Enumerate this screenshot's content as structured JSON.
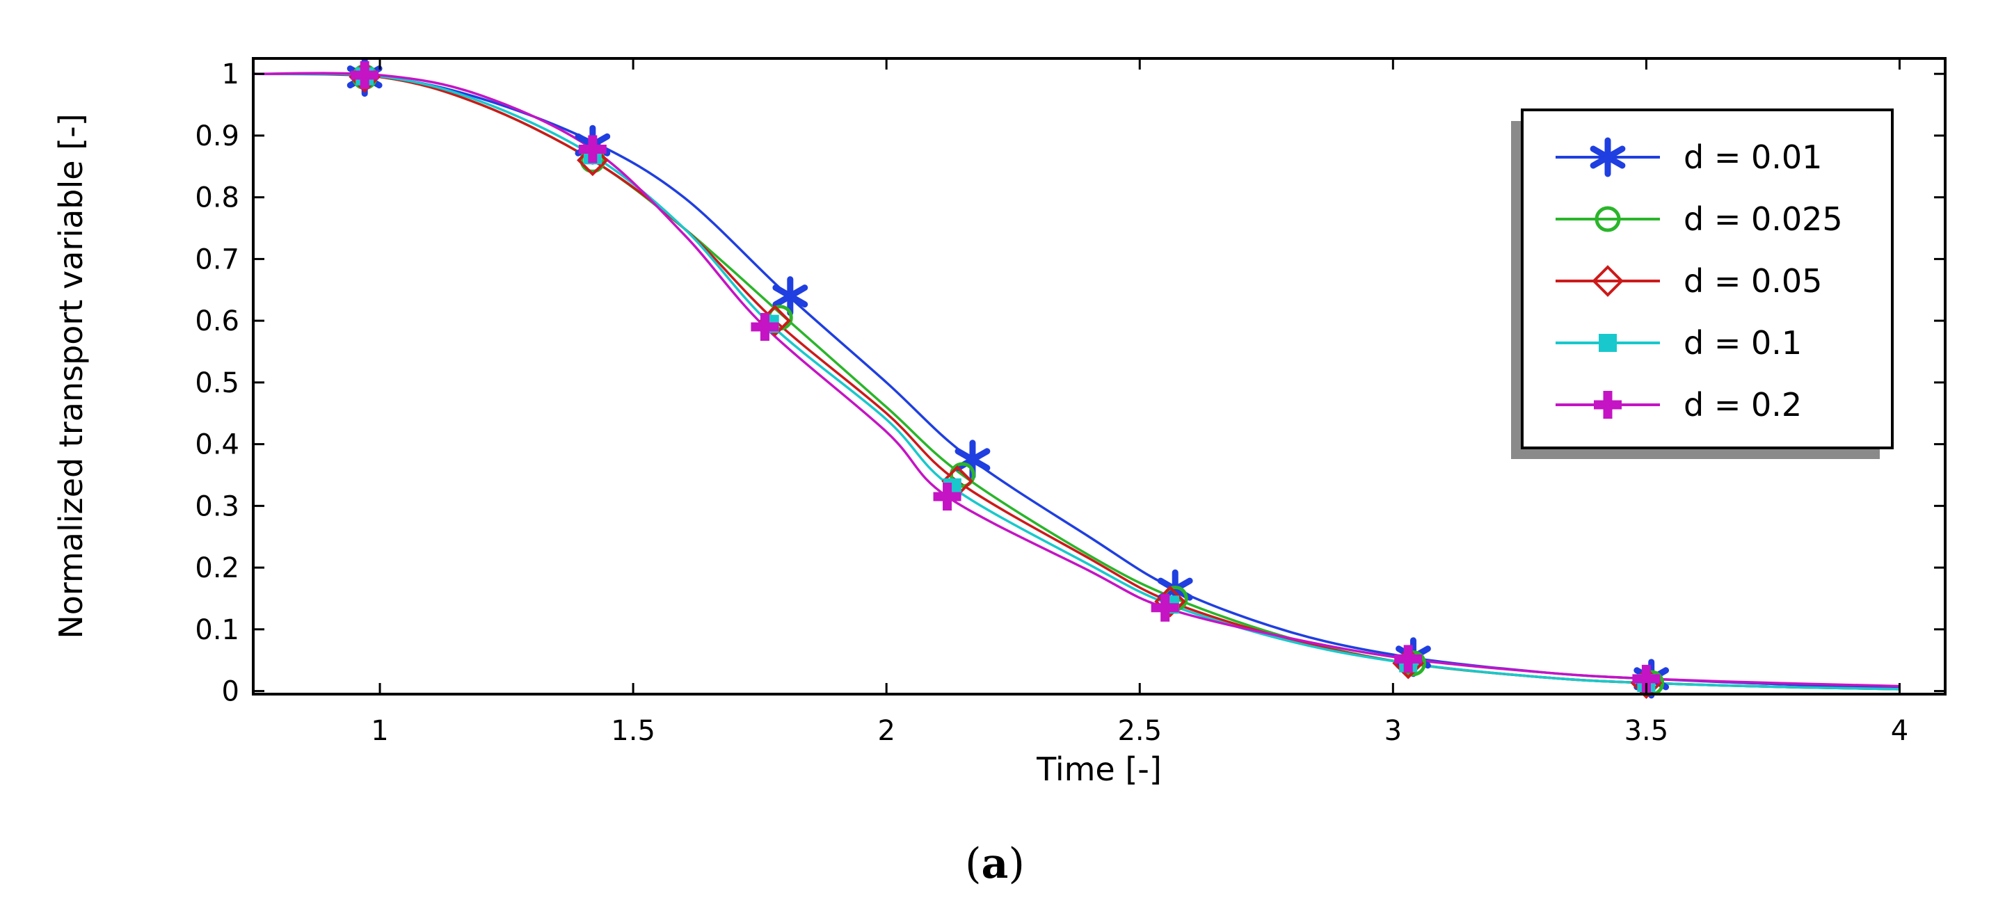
{
  "chart_data": {
    "type": "line",
    "title": "",
    "xlabel": "Time [-]",
    "ylabel": "Normalized transport variable [-]",
    "xlim": [
      0.75,
      4.09
    ],
    "ylim": [
      -0.005,
      1.025
    ],
    "xticks": [
      1,
      1.5,
      2,
      2.5,
      3,
      3.5,
      4
    ],
    "xtick_labels": [
      "1",
      "1.5",
      "2",
      "2.5",
      "3",
      "3.5",
      "4"
    ],
    "yticks": [
      0,
      0.1,
      0.2,
      0.3,
      0.4,
      0.5,
      0.6,
      0.7,
      0.8,
      0.9,
      1
    ],
    "ytick_labels": [
      "0",
      "0.1",
      "0.2",
      "0.3",
      "0.4",
      "0.5",
      "0.6",
      "0.7",
      "0.8",
      "0.9",
      "1"
    ],
    "grid": false,
    "legend_position": "top-right",
    "caption": {
      "open": "(",
      "letter": "a",
      "close": ")"
    },
    "series": [
      {
        "name": "d = 0.01",
        "color": "#1f3fe0",
        "marker": "asterisk",
        "x": [
          0.75,
          1.0,
          1.2,
          1.42,
          1.6,
          1.8,
          2.0,
          2.16,
          2.4,
          2.57,
          2.8,
          3.03,
          3.3,
          3.5,
          3.8,
          4.0
        ],
        "y": [
          1.0,
          0.995,
          0.96,
          0.89,
          0.8,
          0.645,
          0.5,
          0.38,
          0.25,
          0.165,
          0.095,
          0.055,
          0.03,
          0.02,
          0.01,
          0.007
        ],
        "markers_x": [
          0.97,
          1.42,
          1.81,
          2.17,
          2.57,
          3.04,
          3.51
        ],
        "markers_y": [
          0.995,
          0.885,
          0.64,
          0.375,
          0.165,
          0.055,
          0.02
        ]
      },
      {
        "name": "d = 0.025",
        "color": "#2ab52a",
        "marker": "circle",
        "x": [
          0.75,
          1.0,
          1.2,
          1.42,
          1.6,
          1.8,
          2.0,
          2.15,
          2.4,
          2.57,
          2.8,
          3.03,
          3.3,
          3.5,
          3.8,
          4.0
        ],
        "y": [
          1.0,
          0.995,
          0.95,
          0.86,
          0.75,
          0.605,
          0.46,
          0.35,
          0.22,
          0.15,
          0.085,
          0.045,
          0.022,
          0.013,
          0.006,
          0.003
        ],
        "markers_x": [
          0.97,
          1.42,
          1.79,
          2.15,
          2.57,
          3.04,
          3.51
        ],
        "markers_y": [
          0.995,
          0.86,
          0.605,
          0.35,
          0.15,
          0.045,
          0.013
        ]
      },
      {
        "name": "d = 0.05",
        "color": "#cc1a1a",
        "marker": "diamond",
        "x": [
          0.75,
          1.0,
          1.2,
          1.42,
          1.6,
          1.78,
          2.0,
          2.14,
          2.4,
          2.56,
          2.8,
          3.03,
          3.3,
          3.5,
          3.8,
          4.0
        ],
        "y": [
          1.0,
          0.995,
          0.95,
          0.86,
          0.75,
          0.6,
          0.45,
          0.34,
          0.215,
          0.145,
          0.083,
          0.045,
          0.022,
          0.013,
          0.006,
          0.003
        ],
        "markers_x": [
          0.97,
          1.42,
          1.78,
          2.14,
          2.56,
          3.03,
          3.5
        ],
        "markers_y": [
          0.995,
          0.86,
          0.6,
          0.34,
          0.145,
          0.045,
          0.013
        ]
      },
      {
        "name": "d = 0.1",
        "color": "#19c8cc",
        "marker": "square",
        "x": [
          0.75,
          1.0,
          1.2,
          1.42,
          1.6,
          1.77,
          2.0,
          2.13,
          2.4,
          2.56,
          2.8,
          3.03,
          3.3,
          3.5,
          3.8,
          4.0
        ],
        "y": [
          1.0,
          0.996,
          0.955,
          0.868,
          0.75,
          0.595,
          0.44,
          0.33,
          0.205,
          0.14,
          0.08,
          0.045,
          0.022,
          0.013,
          0.006,
          0.003
        ],
        "markers_x": [
          0.97,
          1.42,
          1.77,
          2.13,
          2.56,
          3.03,
          3.5
        ],
        "markers_y": [
          0.996,
          0.868,
          0.595,
          0.33,
          0.14,
          0.045,
          0.013
        ]
      },
      {
        "name": "d = 0.2",
        "color": "#c414c4",
        "marker": "plus",
        "x": [
          0.75,
          1.0,
          1.2,
          1.42,
          1.6,
          1.76,
          2.0,
          2.12,
          2.4,
          2.55,
          2.8,
          3.03,
          3.3,
          3.5,
          3.8,
          4.0
        ],
        "y": [
          1.0,
          0.998,
          0.965,
          0.878,
          0.74,
          0.59,
          0.42,
          0.315,
          0.195,
          0.135,
          0.085,
          0.052,
          0.03,
          0.02,
          0.012,
          0.008
        ],
        "markers_x": [
          0.97,
          1.42,
          1.76,
          2.12,
          2.55,
          3.03,
          3.5
        ],
        "markers_y": [
          0.998,
          0.878,
          0.59,
          0.315,
          0.135,
          0.052,
          0.02
        ]
      }
    ]
  }
}
